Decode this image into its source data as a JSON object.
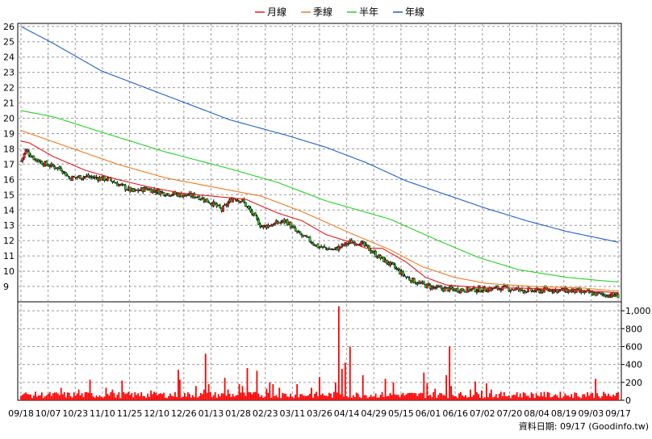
{
  "chart_data": [
    {
      "type": "candlestick",
      "legend": [
        {
          "name": "月線",
          "color": "#e31a1a"
        },
        {
          "name": "季線",
          "color": "#f07a1e"
        },
        {
          "name": "半年",
          "color": "#22d322"
        },
        {
          "name": "年線",
          "color": "#1f5fd0"
        }
      ],
      "ylim": [
        8,
        26.2
      ],
      "y_ticks": [
        "9",
        "10",
        "11",
        "12",
        "13",
        "14",
        "15",
        "16",
        "17",
        "18",
        "19",
        "20",
        "21",
        "22",
        "23",
        "24",
        "25",
        "26"
      ],
      "x_ticks": [
        "09/18",
        "10/07",
        "10/23",
        "11/10",
        "11/25",
        "12/10",
        "12/26",
        "01/13",
        "01/28",
        "02/23",
        "03/11",
        "03/26",
        "04/14",
        "04/29",
        "05/15",
        "06/01",
        "06/16",
        "07/02",
        "07/20",
        "08/04",
        "08/19",
        "09/03",
        "09/17"
      ],
      "grid": true,
      "price_anchors": [
        [
          0,
          17.2
        ],
        [
          3,
          17.9
        ],
        [
          8,
          17.4
        ],
        [
          15,
          17.0
        ],
        [
          25,
          16.7
        ],
        [
          30,
          16.1
        ],
        [
          40,
          16.2
        ],
        [
          55,
          16.0
        ],
        [
          62,
          15.6
        ],
        [
          70,
          15.2
        ],
        [
          78,
          15.4
        ],
        [
          90,
          15.1
        ],
        [
          100,
          15.0
        ],
        [
          110,
          14.9
        ],
        [
          120,
          14.4
        ],
        [
          125,
          14.0
        ],
        [
          132,
          14.8
        ],
        [
          138,
          14.6
        ],
        [
          150,
          12.9
        ],
        [
          158,
          13.1
        ],
        [
          165,
          13.3
        ],
        [
          172,
          12.5
        ],
        [
          180,
          12.0
        ],
        [
          185,
          11.6
        ],
        [
          195,
          11.4
        ],
        [
          205,
          11.9
        ],
        [
          210,
          11.9
        ],
        [
          215,
          11.6
        ],
        [
          222,
          11.0
        ],
        [
          232,
          10.3
        ],
        [
          240,
          9.6
        ],
        [
          248,
          9.2
        ],
        [
          258,
          8.9
        ],
        [
          270,
          8.8
        ],
        [
          285,
          8.8
        ],
        [
          300,
          8.9
        ],
        [
          310,
          8.8
        ],
        [
          320,
          8.7
        ],
        [
          330,
          8.8
        ],
        [
          345,
          8.7
        ],
        [
          360,
          8.5
        ],
        [
          372,
          8.4
        ]
      ],
      "ma_month": [
        [
          0,
          18.5
        ],
        [
          5,
          18.4
        ],
        [
          20,
          17.5
        ],
        [
          40,
          16.6
        ],
        [
          60,
          16.0
        ],
        [
          80,
          15.5
        ],
        [
          100,
          15.1
        ],
        [
          120,
          14.9
        ],
        [
          140,
          14.7
        ],
        [
          160,
          13.8
        ],
        [
          175,
          13.3
        ],
        [
          190,
          12.4
        ],
        [
          205,
          11.9
        ],
        [
          215,
          11.5
        ],
        [
          225,
          11.5
        ],
        [
          240,
          10.6
        ],
        [
          252,
          9.6
        ],
        [
          265,
          9.1
        ],
        [
          290,
          8.9
        ],
        [
          310,
          8.9
        ],
        [
          340,
          8.8
        ],
        [
          372,
          8.6
        ]
      ],
      "ma_quarter": [
        [
          0,
          19.2
        ],
        [
          30,
          18.1
        ],
        [
          60,
          17.0
        ],
        [
          90,
          16.1
        ],
        [
          120,
          15.5
        ],
        [
          150,
          14.9
        ],
        [
          175,
          13.9
        ],
        [
          205,
          12.5
        ],
        [
          230,
          11.4
        ],
        [
          250,
          10.3
        ],
        [
          270,
          9.6
        ],
        [
          290,
          9.2
        ],
        [
          320,
          9.0
        ],
        [
          350,
          8.9
        ],
        [
          372,
          8.7
        ]
      ],
      "ma_half": [
        [
          0,
          20.5
        ],
        [
          20,
          20.1
        ],
        [
          50,
          19.1
        ],
        [
          90,
          17.8
        ],
        [
          130,
          16.7
        ],
        [
          160,
          15.8
        ],
        [
          190,
          14.6
        ],
        [
          230,
          13.4
        ],
        [
          260,
          12.0
        ],
        [
          285,
          10.9
        ],
        [
          310,
          10.1
        ],
        [
          340,
          9.6
        ],
        [
          360,
          9.4
        ],
        [
          372,
          9.3
        ]
      ],
      "ma_year": [
        [
          0,
          26.0
        ],
        [
          20,
          24.9
        ],
        [
          50,
          23.1
        ],
        [
          70,
          22.3
        ],
        [
          100,
          21.1
        ],
        [
          130,
          19.9
        ],
        [
          165,
          18.9
        ],
        [
          190,
          18.1
        ],
        [
          215,
          17.1
        ],
        [
          240,
          15.9
        ],
        [
          265,
          15.0
        ],
        [
          290,
          14.1
        ],
        [
          315,
          13.3
        ],
        [
          340,
          12.6
        ],
        [
          372,
          11.9
        ]
      ],
      "days": 373
    },
    {
      "type": "bar",
      "title": "",
      "ylim": [
        0,
        1100
      ],
      "y_ticks": [
        "0",
        "200",
        "400",
        "600",
        "800",
        "1,000"
      ],
      "color": "#ff0000",
      "spikes": [
        [
          8,
          70
        ],
        [
          52,
          140
        ],
        [
          75,
          120
        ],
        [
          88,
          170
        ],
        [
          90,
          230
        ],
        [
          110,
          140
        ],
        [
          118,
          120
        ],
        [
          120,
          80
        ],
        [
          130,
          220
        ],
        [
          155,
          90
        ],
        [
          168,
          110
        ],
        [
          180,
          80
        ],
        [
          202,
          340
        ],
        [
          205,
          230
        ],
        [
          225,
          160
        ],
        [
          238,
          520
        ],
        [
          242,
          180
        ],
        [
          236,
          170
        ],
        [
          235,
          120
        ],
        [
          263,
          250
        ],
        [
          266,
          120
        ],
        [
          282,
          180
        ],
        [
          285,
          160
        ],
        [
          291,
          360
        ],
        [
          305,
          330
        ],
        [
          316,
          130
        ],
        [
          320,
          200
        ],
        [
          326,
          180
        ],
        [
          333,
          140
        ],
        [
          356,
          180
        ],
        [
          375,
          140
        ],
        [
          385,
          260
        ],
        [
          405,
          200
        ],
        [
          410,
          1050
        ],
        [
          414,
          350
        ],
        [
          418,
          420
        ],
        [
          425,
          600
        ],
        [
          440,
          280
        ],
        [
          470,
          240
        ],
        [
          480,
          200
        ],
        [
          520,
          310
        ],
        [
          524,
          190
        ],
        [
          535,
          130
        ],
        [
          548,
          280
        ],
        [
          552,
          600
        ],
        [
          555,
          160
        ],
        [
          580,
          120
        ],
        [
          585,
          210
        ],
        [
          595,
          110
        ],
        [
          600,
          190
        ],
        [
          606,
          120
        ],
        [
          640,
          90
        ],
        [
          650,
          80
        ],
        [
          670,
          90
        ],
        [
          710,
          70
        ],
        [
          730,
          90
        ],
        [
          740,
          240
        ],
        [
          755,
          50
        ],
        [
          762,
          40
        ]
      ],
      "baseline": 60
    }
  ],
  "footer_text": "資料日期: 09/17  (Goodinfo.tw)"
}
